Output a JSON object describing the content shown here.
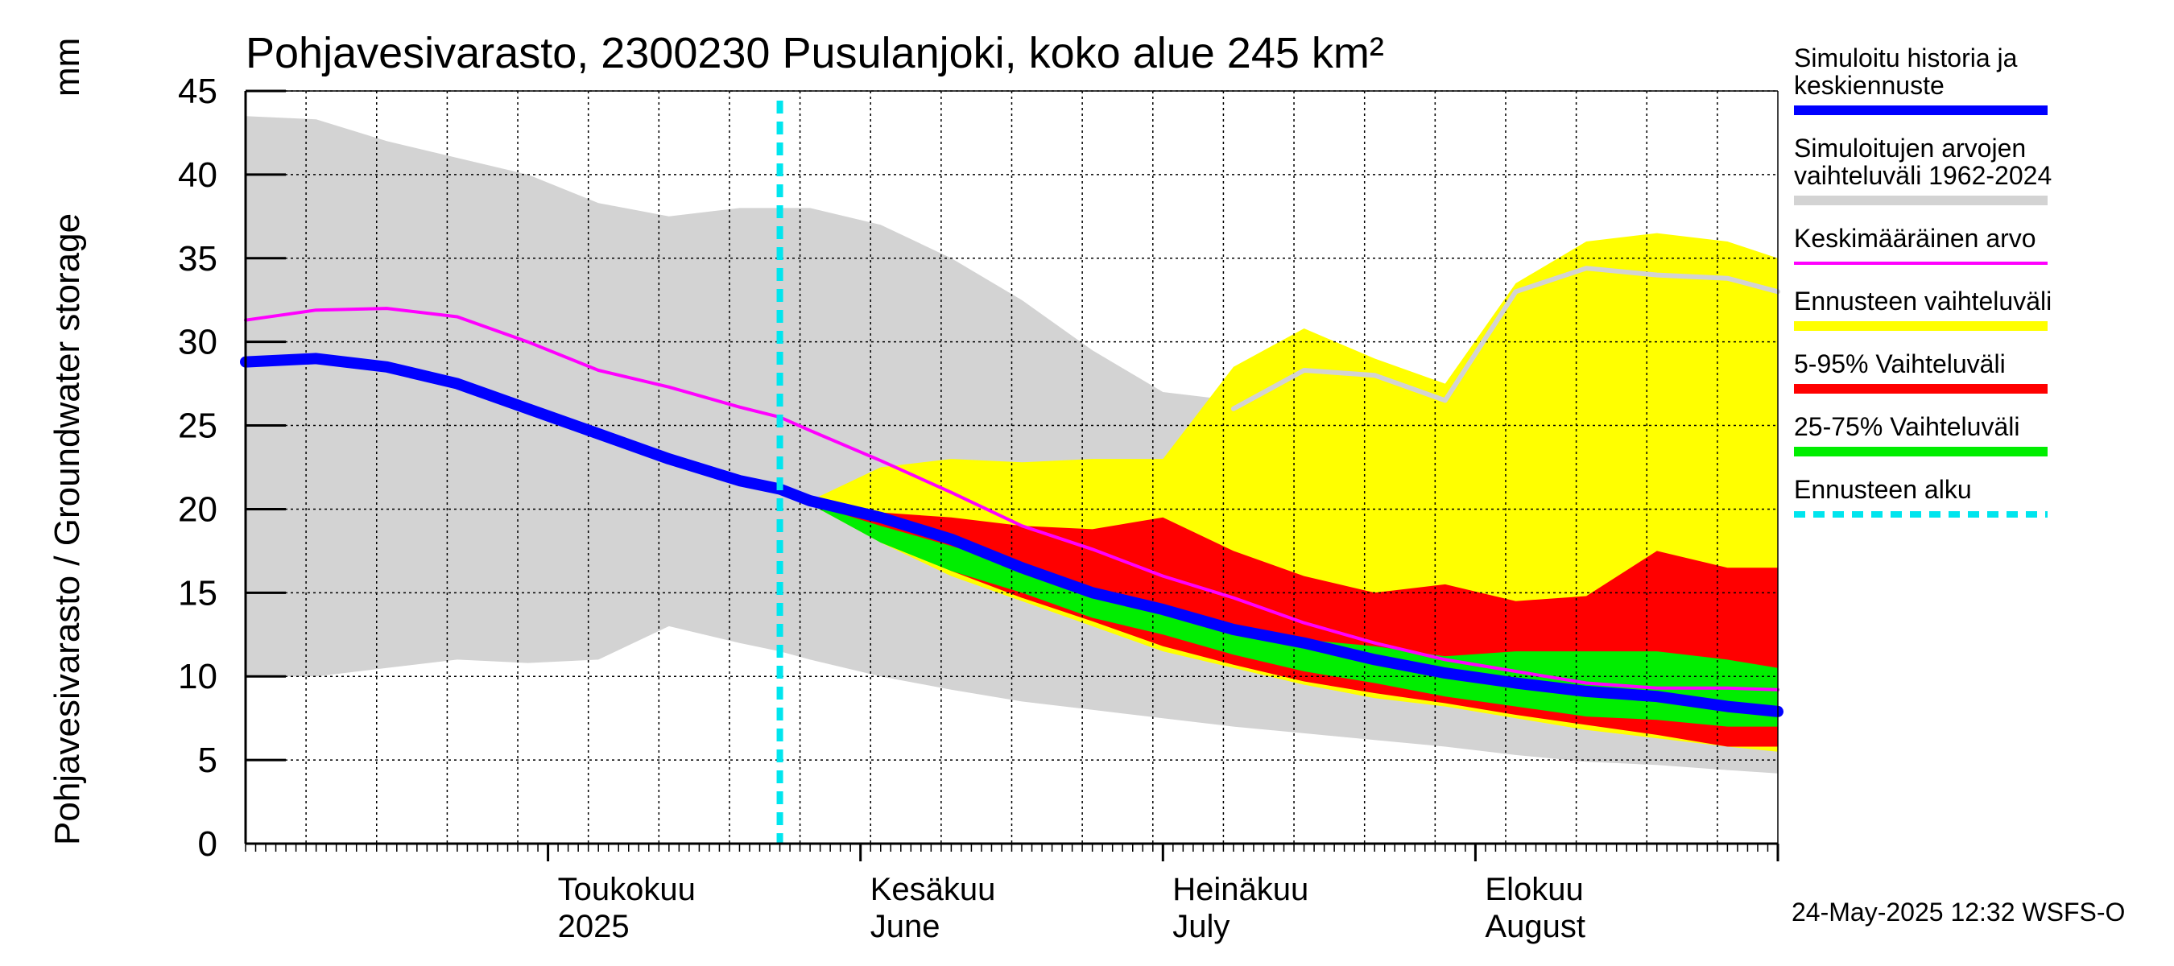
{
  "chart_data": {
    "type": "area",
    "title": "Pohjavesivarasto, 2300230 Pusulanjoki, koko alue 245 km²",
    "ylabel": "Pohjavesivarasto / Groundwater storage",
    "yunit": "mm",
    "ylim": [
      0,
      45
    ],
    "yticks": [
      0,
      5,
      10,
      15,
      20,
      25,
      30,
      35,
      40,
      45
    ],
    "xlim": [
      "2025-04-01",
      "2025-08-31"
    ],
    "grid": true,
    "forecast_start": "2025-05-24",
    "months": [
      {
        "date": "2025-05-01",
        "label": "Toukokuu",
        "label2": "2025"
      },
      {
        "date": "2025-06-01",
        "label": "Kesäkuu",
        "label2": "June"
      },
      {
        "date": "2025-07-01",
        "label": "Heinäkuu",
        "label2": "July"
      },
      {
        "date": "2025-08-01",
        "label": "Elokuu",
        "label2": "August"
      }
    ],
    "x": [
      "2025-04-01",
      "2025-04-08",
      "2025-04-15",
      "2025-04-22",
      "2025-04-29",
      "2025-05-06",
      "2025-05-13",
      "2025-05-20",
      "2025-05-24",
      "2025-05-27",
      "2025-06-03",
      "2025-06-10",
      "2025-06-17",
      "2025-06-24",
      "2025-07-01",
      "2025-07-08",
      "2025-07-15",
      "2025-07-22",
      "2025-07-29",
      "2025-08-05",
      "2025-08-12",
      "2025-08-19",
      "2025-08-26",
      "2025-08-31"
    ],
    "series": [
      {
        "name": "Simuloitujen arvojen vaihteluväli 1962-2024",
        "type": "band",
        "color": "#d3d3d3",
        "low": [
          10.0,
          10.0,
          10.5,
          11.0,
          10.8,
          11.0,
          13.0,
          12.0,
          11.5,
          11.0,
          10.0,
          9.2,
          8.5,
          8.0,
          7.5,
          7.0,
          6.6,
          6.2,
          5.8,
          5.3,
          4.9,
          4.7,
          4.4,
          4.2
        ],
        "high": [
          43.5,
          43.3,
          42.0,
          41.0,
          40.0,
          38.3,
          37.5,
          38.0,
          38.0,
          38.0,
          37.0,
          35.0,
          32.5,
          29.5,
          27.0,
          26.5,
          26.0,
          26.0,
          26.0,
          26.0,
          26.0,
          26.0,
          26.0,
          26.0
        ]
      },
      {
        "name": "Ennusteen vaihteluväli",
        "type": "band",
        "color": "#ffff00",
        "low": [
          null,
          null,
          null,
          null,
          null,
          null,
          null,
          null,
          21.0,
          20.3,
          18.0,
          16.0,
          14.5,
          13.0,
          11.5,
          10.5,
          9.5,
          8.7,
          8.2,
          7.5,
          6.8,
          6.3,
          5.8,
          5.5
        ],
        "high": [
          null,
          null,
          null,
          null,
          null,
          null,
          null,
          null,
          21.0,
          20.5,
          22.5,
          23.0,
          22.8,
          23.0,
          23.0,
          28.5,
          30.8,
          29.0,
          27.5,
          33.5,
          36.0,
          36.5,
          36.0,
          35.0
        ]
      },
      {
        "name": "5-95% Vaihteluväli",
        "type": "band",
        "color": "#ff0000",
        "low": [
          null,
          null,
          null,
          null,
          null,
          null,
          null,
          null,
          21.0,
          20.3,
          18.2,
          16.3,
          14.7,
          13.3,
          11.8,
          10.7,
          9.7,
          9.0,
          8.4,
          7.7,
          7.1,
          6.5,
          5.8,
          5.8
        ],
        "high": [
          null,
          null,
          null,
          null,
          null,
          null,
          null,
          null,
          21.0,
          20.3,
          19.8,
          19.5,
          19.0,
          18.8,
          19.5,
          17.5,
          16.0,
          15.0,
          15.5,
          14.5,
          14.8,
          17.5,
          16.5,
          16.5
        ]
      },
      {
        "name": "25-75% Vaihteluväli",
        "type": "band",
        "color": "#00ee00",
        "low": [
          null,
          null,
          null,
          null,
          null,
          null,
          null,
          null,
          21.0,
          20.3,
          18.0,
          16.3,
          15.0,
          13.5,
          12.5,
          11.3,
          10.3,
          9.6,
          8.8,
          8.2,
          7.6,
          7.4,
          7.0,
          7.0
        ],
        "high": [
          null,
          null,
          null,
          null,
          null,
          null,
          null,
          null,
          21.0,
          20.3,
          19.0,
          17.8,
          16.5,
          15.3,
          14.3,
          13.0,
          12.2,
          11.8,
          11.2,
          11.5,
          11.5,
          11.5,
          11.0,
          10.5
        ]
      },
      {
        "name": "Simuloitu historia ja keskiennuste",
        "type": "line",
        "color": "#0000ff",
        "values": [
          28.8,
          29.0,
          28.5,
          27.5,
          26.0,
          24.5,
          23.0,
          21.7,
          21.2,
          20.5,
          19.5,
          18.2,
          16.5,
          15.0,
          14.0,
          12.8,
          12.0,
          11.0,
          10.2,
          9.6,
          9.1,
          8.8,
          8.2,
          7.9
        ]
      },
      {
        "name": "Keskimääräinen arvo",
        "type": "line",
        "color": "#ff00ff",
        "values": [
          31.3,
          31.9,
          32.0,
          31.5,
          30.0,
          28.3,
          27.3,
          26.1,
          25.5,
          24.7,
          22.9,
          21.0,
          19.0,
          17.6,
          16.0,
          14.7,
          13.2,
          12.0,
          11.0,
          10.3,
          9.6,
          9.3,
          9.3,
          9.2
        ]
      },
      {
        "name": "Simulated grey median (light line)",
        "type": "line",
        "color": "#d3d3d3",
        "values": [
          null,
          null,
          null,
          null,
          null,
          null,
          null,
          null,
          null,
          null,
          null,
          null,
          null,
          null,
          null,
          26.0,
          28.3,
          28.0,
          26.5,
          33.0,
          34.4,
          34.0,
          33.8,
          33.0
        ]
      }
    ]
  },
  "legend": {
    "items": [
      {
        "label": "Simuloitu historia ja",
        "label2": "keskiennuste",
        "color": "#0000ff",
        "style": "thick"
      },
      {
        "label": "Simuloitujen arvojen",
        "label2": "vaihteluväli 1962-2024",
        "color": "#d3d3d3",
        "style": "thick"
      },
      {
        "label": "Keskimääräinen arvo",
        "label2": "",
        "color": "#ff00ff",
        "style": "thin"
      },
      {
        "label": "Ennusteen vaihteluväli",
        "label2": "",
        "color": "#ffff00",
        "style": "thick"
      },
      {
        "label": "5-95% Vaihteluväli",
        "label2": "",
        "color": "#ff0000",
        "style": "thick"
      },
      {
        "label": "25-75% Vaihteluväli",
        "label2": "",
        "color": "#00ee00",
        "style": "thick"
      },
      {
        "label": "Ennusteen alku",
        "label2": "",
        "color": "#00e5ee",
        "style": "dashed"
      }
    ]
  },
  "footer": "24-May-2025 12:32 WSFS-O"
}
